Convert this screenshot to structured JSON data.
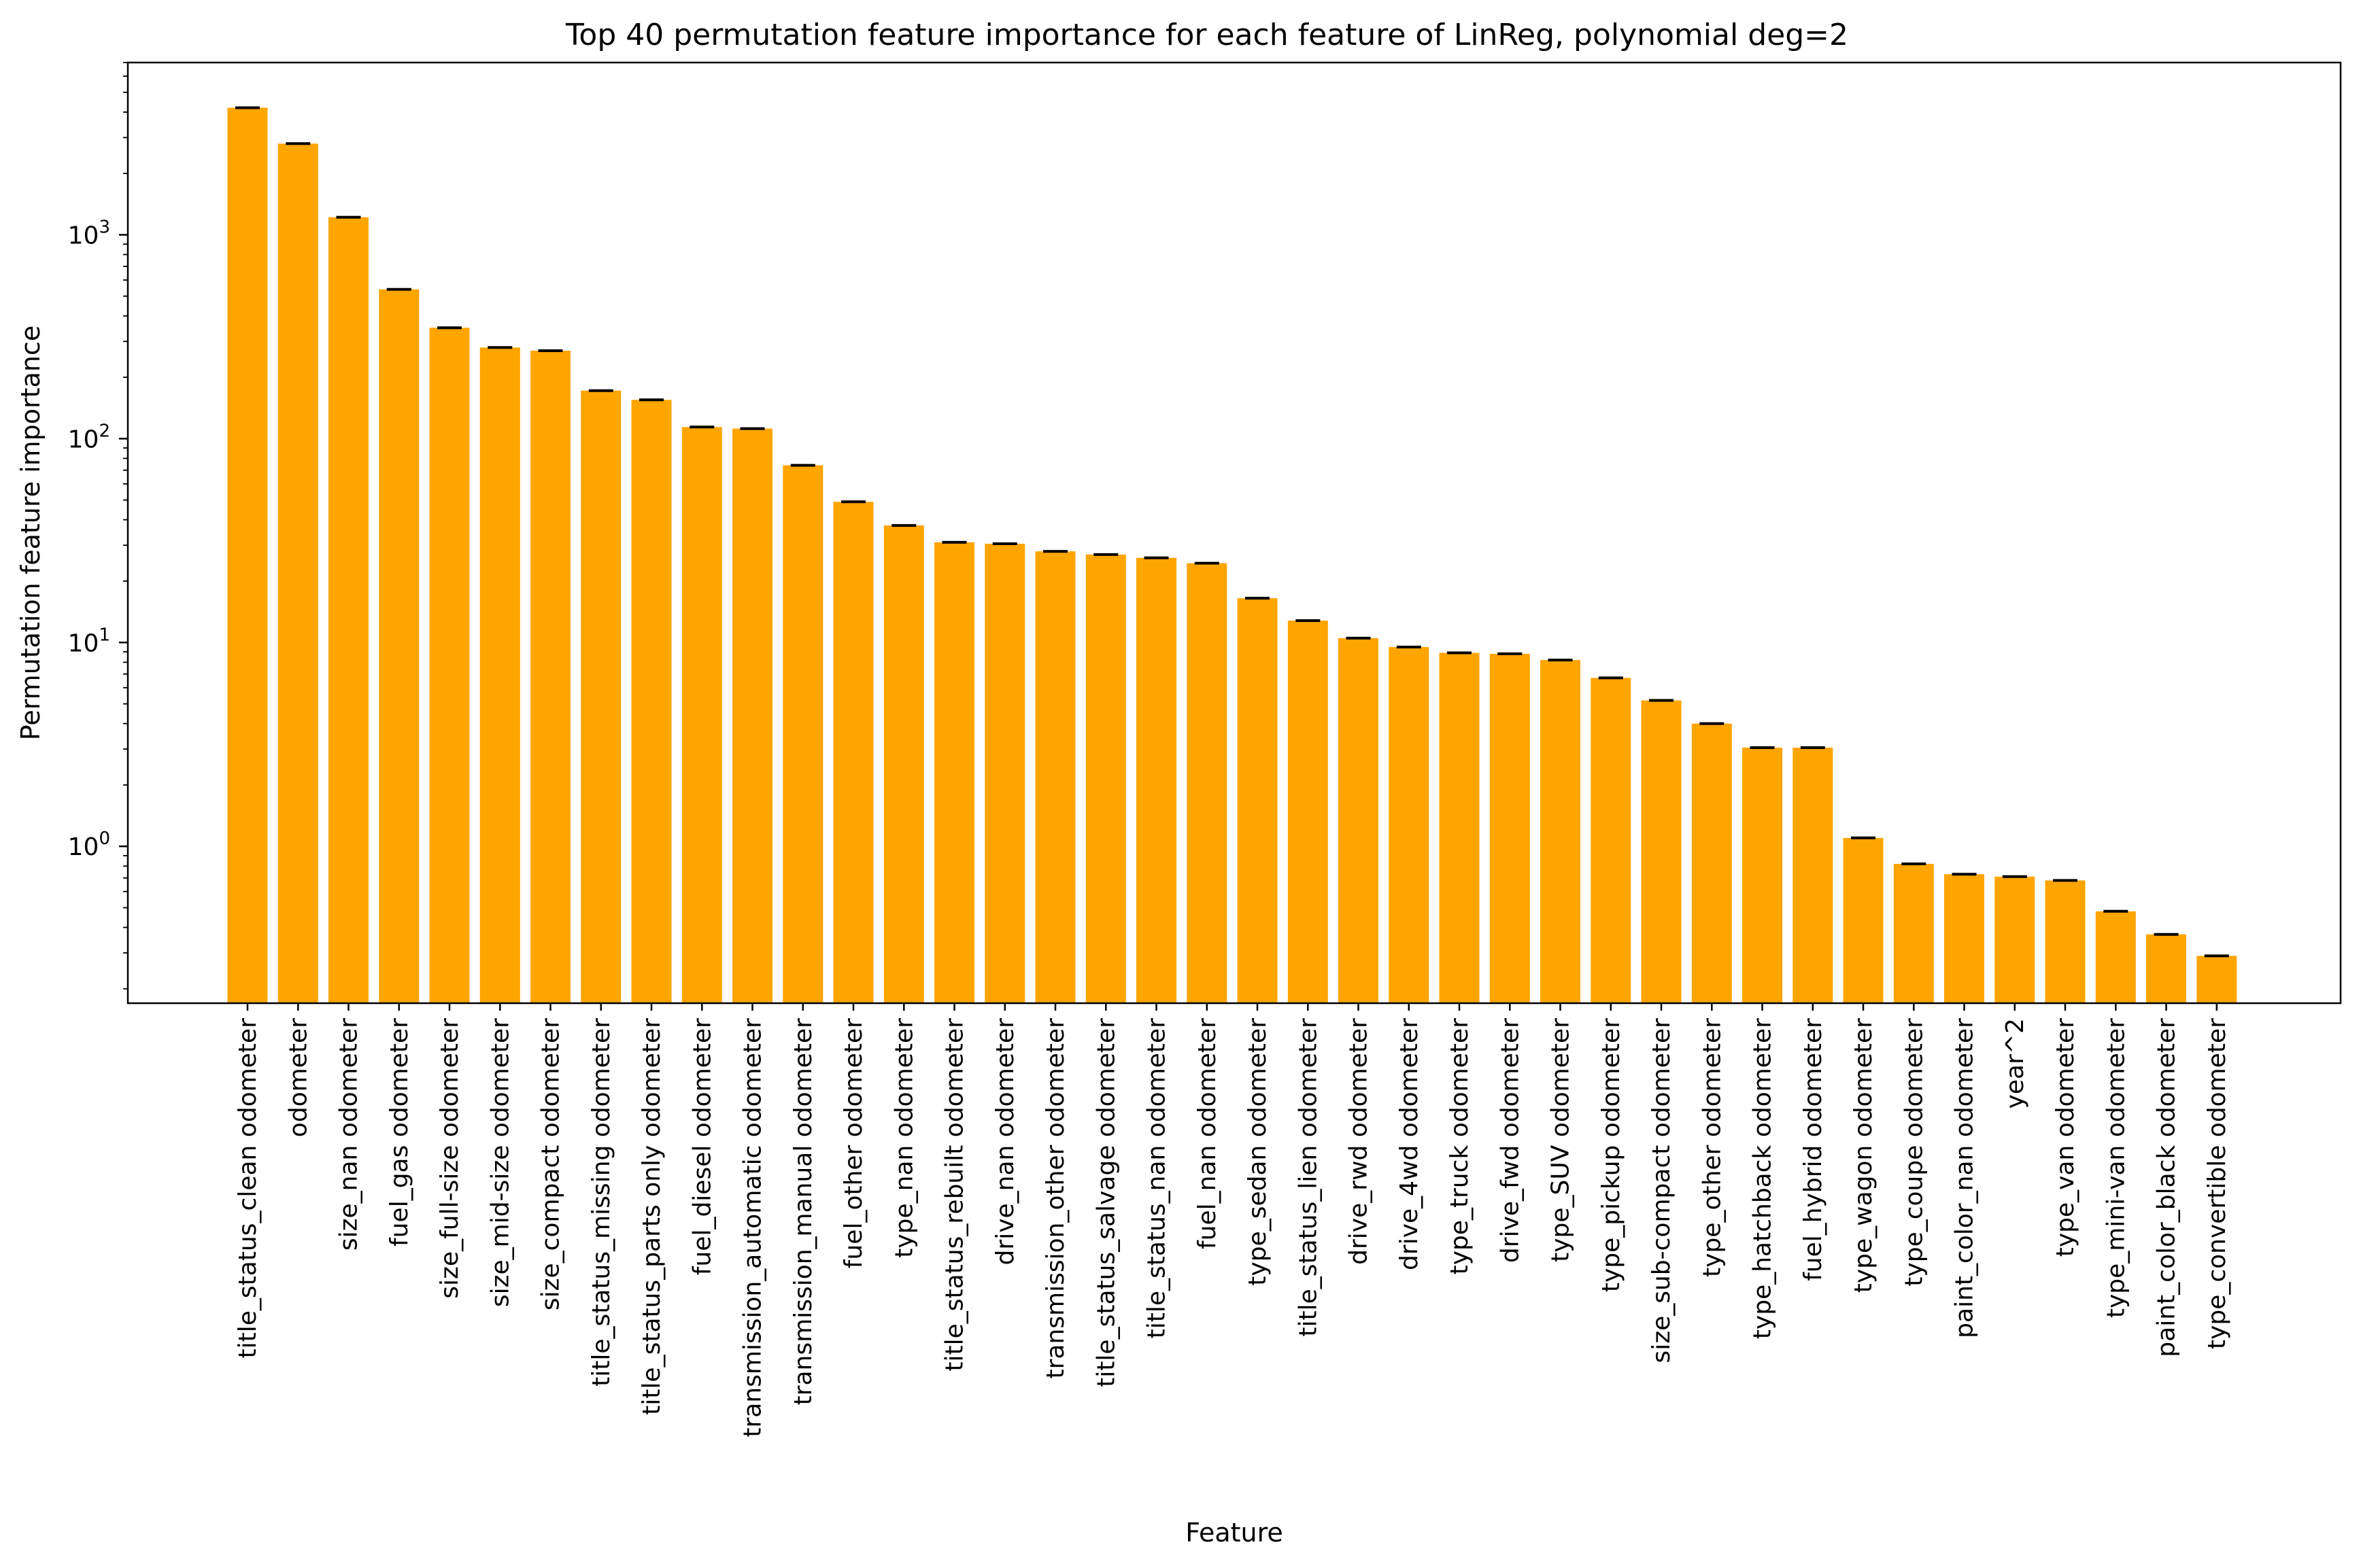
{
  "chart_data": {
    "type": "bar",
    "title": "Top 40 permutation feature importance for each feature of LinReg, polynomial deg=2",
    "xlabel": "Feature",
    "ylabel": "Permutation feature importance",
    "yscale": "log",
    "ylim": [
      0.17,
      7000
    ],
    "yticks": [
      {
        "value": 1,
        "base": "10",
        "exp": "0"
      },
      {
        "value": 10,
        "base": "10",
        "exp": "1"
      },
      {
        "value": 100,
        "base": "10",
        "exp": "2"
      },
      {
        "value": 1000,
        "base": "10",
        "exp": "3"
      }
    ],
    "bar_color": "#FFA500",
    "errorbar_color": "#000000",
    "grid": false,
    "categories": [
      "title_status_clean odometer",
      "odometer",
      "size_nan odometer",
      "fuel_gas odometer",
      "size_full-size odometer",
      "size_mid-size odometer",
      "size_compact odometer",
      "title_status_missing odometer",
      "title_status_parts only odometer",
      "fuel_diesel odometer",
      "transmission_automatic odometer",
      "transmission_manual odometer",
      "fuel_other odometer",
      "type_nan odometer",
      "title_status_rebuilt odometer",
      "drive_nan odometer",
      "transmission_other odometer",
      "title_status_salvage odometer",
      "title_status_nan odometer",
      "fuel_nan odometer",
      "type_sedan odometer",
      "title_status_lien odometer",
      "drive_rwd odometer",
      "drive_4wd odometer",
      "type_truck odometer",
      "drive_fwd odometer",
      "type_SUV odometer",
      "type_pickup odometer",
      "size_sub-compact odometer",
      "type_other odometer",
      "type_hatchback odometer",
      "fuel_hybrid odometer",
      "type_wagon odometer",
      "type_coupe odometer",
      "paint_color_nan odometer",
      "year^2",
      "type_van odometer",
      "type_mini-van odometer",
      "paint_color_black odometer",
      "type_convertible odometer"
    ],
    "values": [
      4200,
      2800,
      1220,
      540,
      350,
      280,
      270,
      172,
      155,
      114,
      112,
      74,
      49,
      37.5,
      31,
      30.5,
      28,
      27,
      26,
      24.5,
      16.5,
      12.8,
      10.5,
      9.5,
      8.9,
      8.8,
      8.2,
      6.7,
      5.2,
      4.0,
      3.05,
      3.05,
      1.1,
      0.82,
      0.73,
      0.71,
      0.68,
      0.48,
      0.37,
      0.29
    ]
  }
}
